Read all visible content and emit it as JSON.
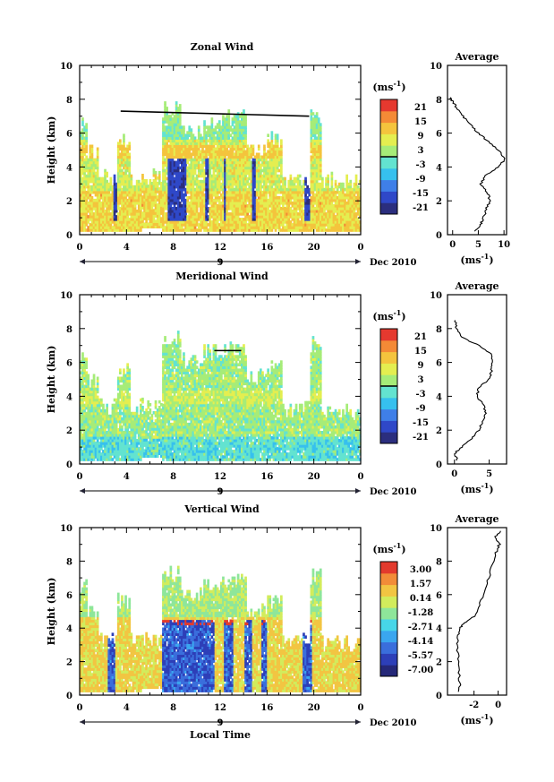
{
  "chart_data": [
    {
      "type": "heatmap",
      "title": "Zonal Wind",
      "ylabel": "Height (km)",
      "unit_label": "(ms",
      "unit_exp": "-1",
      "xlim": [
        0,
        24
      ],
      "ylim": [
        0,
        10
      ],
      "x_ticks": [
        "0",
        "4",
        "8",
        "12",
        "16",
        "20",
        "0"
      ],
      "y_ticks": [
        "0",
        "2",
        "4",
        "6",
        "8",
        "10"
      ],
      "day_label": "9",
      "date_label": "Dec 2010",
      "colorbar": {
        "ticks": [
          "21",
          "15",
          "9",
          "3",
          "-3",
          "-9",
          "-15",
          "-21"
        ],
        "range": [
          -24,
          24
        ],
        "marked_level": 0
      },
      "average": {
        "title": "Average",
        "xlim": [
          -1,
          10.5
        ],
        "x_ticks": [
          "0",
          "5",
          "10"
        ],
        "xlabel_unit": "(ms",
        "xlabel_exp": "-1",
        "profile": [
          {
            "h": 0.2,
            "v": 4.5
          },
          {
            "h": 0.6,
            "v": 5.5
          },
          {
            "h": 1.0,
            "v": 6.0
          },
          {
            "h": 1.5,
            "v": 6.5
          },
          {
            "h": 2.0,
            "v": 7.3
          },
          {
            "h": 2.5,
            "v": 6.8
          },
          {
            "h": 3.0,
            "v": 5.5
          },
          {
            "h": 3.5,
            "v": 6.5
          },
          {
            "h": 4.0,
            "v": 9.0
          },
          {
            "h": 4.5,
            "v": 10.2
          },
          {
            "h": 5.0,
            "v": 9.0
          },
          {
            "h": 5.5,
            "v": 7.0
          },
          {
            "h": 6.0,
            "v": 5.0
          },
          {
            "h": 6.5,
            "v": 3.5
          },
          {
            "h": 7.0,
            "v": 2.0
          },
          {
            "h": 7.5,
            "v": 0.8
          },
          {
            "h": 7.9,
            "v": 0.0
          },
          {
            "h": 8.1,
            "v": -0.5
          }
        ]
      }
    },
    {
      "type": "heatmap",
      "title": "Meridional Wind",
      "ylabel": "Height (km)",
      "unit_label": "(ms",
      "unit_exp": "-1",
      "xlim": [
        0,
        24
      ],
      "ylim": [
        0,
        10
      ],
      "x_ticks": [
        "0",
        "4",
        "8",
        "12",
        "16",
        "20",
        "0"
      ],
      "y_ticks": [
        "0",
        "2",
        "4",
        "6",
        "8",
        "10"
      ],
      "day_label": "9",
      "date_label": "Dec 2010",
      "colorbar": {
        "ticks": [
          "21",
          "15",
          "9",
          "3",
          "-3",
          "-9",
          "-15",
          "-21"
        ],
        "range": [
          -24,
          24
        ],
        "marked_level": 0
      },
      "average": {
        "title": "Average",
        "xlim": [
          -1,
          7.5
        ],
        "x_ticks": [
          "0",
          "5"
        ],
        "xlabel_unit": "(ms",
        "xlabel_exp": "-1",
        "profile": [
          {
            "h": 0.2,
            "v": 0.5
          },
          {
            "h": 0.6,
            "v": 0.0
          },
          {
            "h": 1.0,
            "v": 1.0
          },
          {
            "h": 1.5,
            "v": 2.5
          },
          {
            "h": 2.0,
            "v": 3.5
          },
          {
            "h": 2.5,
            "v": 4.0
          },
          {
            "h": 3.0,
            "v": 4.5
          },
          {
            "h": 3.5,
            "v": 4.2
          },
          {
            "h": 4.0,
            "v": 3.2
          },
          {
            "h": 4.5,
            "v": 3.5
          },
          {
            "h": 5.0,
            "v": 5.0
          },
          {
            "h": 5.5,
            "v": 5.3
          },
          {
            "h": 6.0,
            "v": 5.5
          },
          {
            "h": 6.5,
            "v": 5.4
          },
          {
            "h": 7.0,
            "v": 3.5
          },
          {
            "h": 7.5,
            "v": 1.0
          },
          {
            "h": 8.0,
            "v": 0.3
          },
          {
            "h": 8.5,
            "v": 0.1
          }
        ]
      }
    },
    {
      "type": "heatmap",
      "title": "Vertical Wind",
      "ylabel": "Height (km)",
      "xlabel": "Local Time",
      "unit_label": "(ms",
      "unit_exp": "-1",
      "xlim": [
        0,
        24
      ],
      "ylim": [
        0,
        10
      ],
      "x_ticks": [
        "0",
        "4",
        "8",
        "12",
        "16",
        "20",
        "0"
      ],
      "y_ticks": [
        "0",
        "2",
        "4",
        "6",
        "8",
        "10"
      ],
      "day_label": "9",
      "date_label": "Dec 2010",
      "colorbar": {
        "ticks": [
          "3.00",
          "1.57",
          "0.14",
          "-1.28",
          "-2.71",
          "-4.14",
          "-5.57",
          "-7.00"
        ],
        "range": [
          -7.7,
          3.7
        ],
        "marked_level": null
      },
      "average": {
        "title": "Average",
        "xlim": [
          -4.2,
          0.7
        ],
        "x_ticks": [
          "-2",
          "0"
        ],
        "xlabel_unit": "(ms",
        "xlabel_exp": "-1",
        "profile": [
          {
            "h": 0.2,
            "v": -3.2
          },
          {
            "h": 1.0,
            "v": -3.2
          },
          {
            "h": 2.0,
            "v": -3.3
          },
          {
            "h": 3.0,
            "v": -3.4
          },
          {
            "h": 3.5,
            "v": -3.3
          },
          {
            "h": 4.0,
            "v": -3.2
          },
          {
            "h": 4.3,
            "v": -2.8
          },
          {
            "h": 4.7,
            "v": -2.0
          },
          {
            "h": 5.5,
            "v": -1.5
          },
          {
            "h": 6.5,
            "v": -1.0
          },
          {
            "h": 7.5,
            "v": -0.6
          },
          {
            "h": 8.5,
            "v": -0.2
          },
          {
            "h": 9.0,
            "v": 0.1
          },
          {
            "h": 9.4,
            "v": -0.3
          },
          {
            "h": 9.8,
            "v": 0.2
          }
        ]
      }
    }
  ]
}
